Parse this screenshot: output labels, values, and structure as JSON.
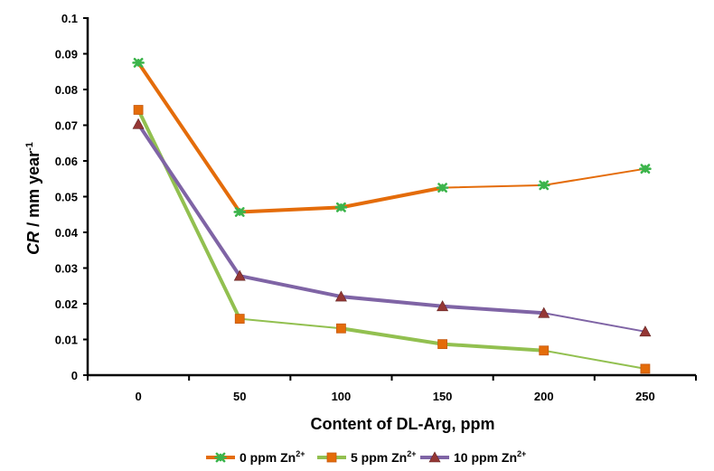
{
  "chart_data": {
    "type": "line",
    "title": "",
    "xlabel": "Content of DL-Arg, ppm",
    "ylabel": {
      "italic": "CR",
      "rest": " / mm year",
      "sup": "-1"
    },
    "x": [
      0,
      50,
      100,
      150,
      200,
      250
    ],
    "x_ticks": [
      "0",
      "50",
      "100",
      "150",
      "200",
      "250"
    ],
    "y_ticks": [
      "0",
      "0.01",
      "0.02",
      "0.03",
      "0.04",
      "0.05",
      "0.06",
      "0.07",
      "0.08",
      "0.09",
      "0.1"
    ],
    "xlim": [
      -25,
      275
    ],
    "ylim": [
      0,
      0.1
    ],
    "grid": false,
    "legend_position": "bottom",
    "series": [
      {
        "name": "0 ppm Zn",
        "sup": "2+",
        "marker": "asterisk",
        "line_color": "#E46C0A",
        "marker_color": "#3CB44B",
        "values": [
          0.0875,
          0.0457,
          0.047,
          0.0525,
          0.0532,
          0.0578
        ]
      },
      {
        "name": "5 ppm Zn",
        "sup": "2+",
        "marker": "square",
        "line_color": "#92C050",
        "marker_color": "#E46C0A",
        "values": [
          0.0743,
          0.0158,
          0.0131,
          0.0087,
          0.0069,
          0.0018
        ]
      },
      {
        "name": "10 ppm Zn",
        "sup": "2+",
        "marker": "triangle",
        "line_color": "#7F64A5",
        "marker_color": "#953735",
        "values": [
          0.0703,
          0.0278,
          0.022,
          0.0193,
          0.0174,
          0.0122
        ]
      }
    ]
  }
}
